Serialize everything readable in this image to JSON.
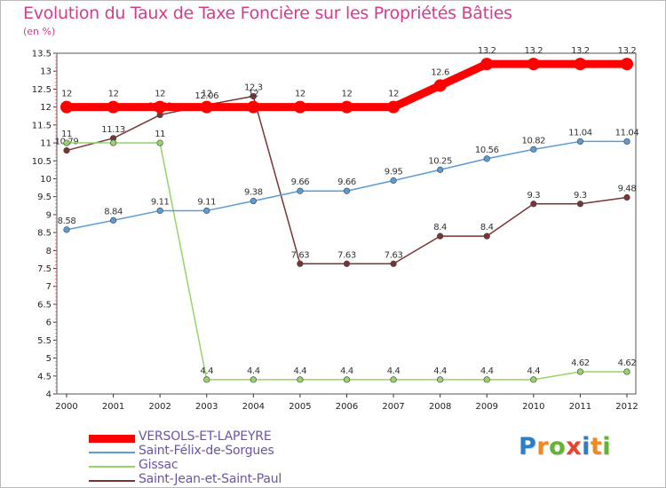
{
  "title": "Evolution du Taux de Taxe Foncière sur les Propriétés Bâties",
  "subtitle": "(en %)",
  "logo": {
    "letters": [
      "P",
      "r",
      "o",
      "x",
      "i",
      "t",
      "i"
    ],
    "colors": [
      "#2a7fc8",
      "#ee8a1f",
      "#63b432",
      "#e6462f",
      "#2a7fc8",
      "#ee8a1f",
      "#63b432"
    ]
  },
  "chart_data": {
    "type": "line",
    "x": [
      "2000",
      "2001",
      "2002",
      "2003",
      "2004",
      "2005",
      "2006",
      "2007",
      "2008",
      "2009",
      "2010",
      "2011",
      "2012"
    ],
    "ylim": [
      4,
      13.5
    ],
    "yticks": [
      "4",
      "4.5",
      "5",
      "5.5",
      "6",
      "6.5",
      "7",
      "7.5",
      "8",
      "8.5",
      "9",
      "9.5",
      "10",
      "10.5",
      "11",
      "11.5",
      "12",
      "12.5",
      "13",
      "13.5"
    ],
    "xlabel": "",
    "ylabel": "",
    "grid": false,
    "legend_position": "bottom-left",
    "series": [
      {
        "name": "VERSOLS-ET-LAPEYRE",
        "color": "#ff0000",
        "values": [
          12,
          12,
          12,
          12,
          12,
          12,
          12,
          12,
          12.6,
          13.2,
          13.2,
          13.2,
          13.2
        ],
        "labels": [
          "12",
          "12",
          "12",
          "12",
          "12",
          "12",
          "12",
          "12",
          "12.6",
          "13.2",
          "13.2",
          "13.2",
          "13.2"
        ]
      },
      {
        "name": "Saint-Félix-de-Sorgues",
        "color": "#5d9bd3",
        "values": [
          8.58,
          8.84,
          9.11,
          9.11,
          9.38,
          9.66,
          9.66,
          9.95,
          10.25,
          10.56,
          10.82,
          11.04,
          11.04
        ],
        "labels": [
          "8.58",
          "8.84",
          "9.11",
          "9.11",
          "9.38",
          "9.66",
          "9.66",
          "9.95",
          "10.25",
          "10.56",
          "10.82",
          "11.04",
          "11.04"
        ]
      },
      {
        "name": "Gissac",
        "color": "#96d36a",
        "values": [
          11,
          11,
          11,
          4.4,
          4.4,
          4.4,
          4.4,
          4.4,
          4.4,
          4.4,
          4.4,
          4.62,
          4.62
        ],
        "labels": [
          "11",
          "",
          "11",
          "4.4",
          "4.4",
          "4.4",
          "4.4",
          "4.4",
          "4.4",
          "4.4",
          "4.4",
          "4.62",
          "4.62"
        ]
      },
      {
        "name": "Saint-Jean-et-Saint-Paul",
        "color": "#7a3435",
        "values": [
          10.79,
          11.13,
          11.78,
          12.06,
          12.3,
          7.63,
          7.63,
          7.63,
          8.4,
          8.4,
          9.3,
          9.3,
          9.48
        ],
        "labels": [
          "10.79",
          "11.13",
          "11.78",
          "12.06",
          "12.3",
          "7.63",
          "7.63",
          "7.63",
          "8.4",
          "8.4",
          "9.3",
          "9.3",
          "9.48"
        ]
      }
    ]
  }
}
